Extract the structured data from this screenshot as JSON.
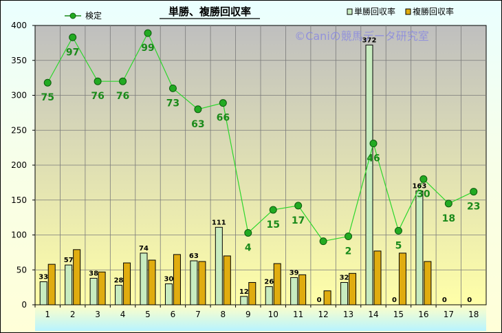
{
  "chart_data": {
    "type": "bar",
    "title": "単勝、複勝回収率",
    "watermark": "©Caniの競馬データ研究室",
    "categories": [
      "1",
      "2",
      "3",
      "4",
      "5",
      "6",
      "7",
      "8",
      "9",
      "10",
      "11",
      "12",
      "13",
      "14",
      "15",
      "16",
      "17",
      "18"
    ],
    "ylim": [
      0,
      400
    ],
    "yticks": [
      0,
      50,
      100,
      150,
      200,
      250,
      300,
      350,
      400
    ],
    "grid": true,
    "series": [
      {
        "name": "単勝回収率",
        "kind": "bar",
        "color": "#c8ecc0",
        "values": [
          33,
          57,
          38,
          28,
          74,
          30,
          63,
          111,
          12,
          26,
          39,
          0,
          32,
          372,
          0,
          163,
          0,
          0
        ]
      },
      {
        "name": "複勝回収率",
        "kind": "bar",
        "color": "#e0ac10",
        "values": [
          58,
          79,
          47,
          60,
          64,
          72,
          62,
          70,
          32,
          59,
          43,
          20,
          45,
          77,
          74,
          62,
          0,
          0
        ]
      },
      {
        "name": "検定",
        "kind": "line",
        "color": "#1a8a1a",
        "values": [
          318,
          383,
          320,
          320,
          389,
          310,
          280,
          289,
          103,
          136,
          142,
          91,
          98,
          231,
          106,
          180,
          145,
          162
        ],
        "labels": [
          "75",
          "97",
          "76",
          "76",
          "99",
          "73",
          "63",
          "66",
          "4",
          "15",
          "17",
          "",
          "2",
          "46",
          "5",
          "30",
          "18",
          "23"
        ]
      }
    ]
  }
}
